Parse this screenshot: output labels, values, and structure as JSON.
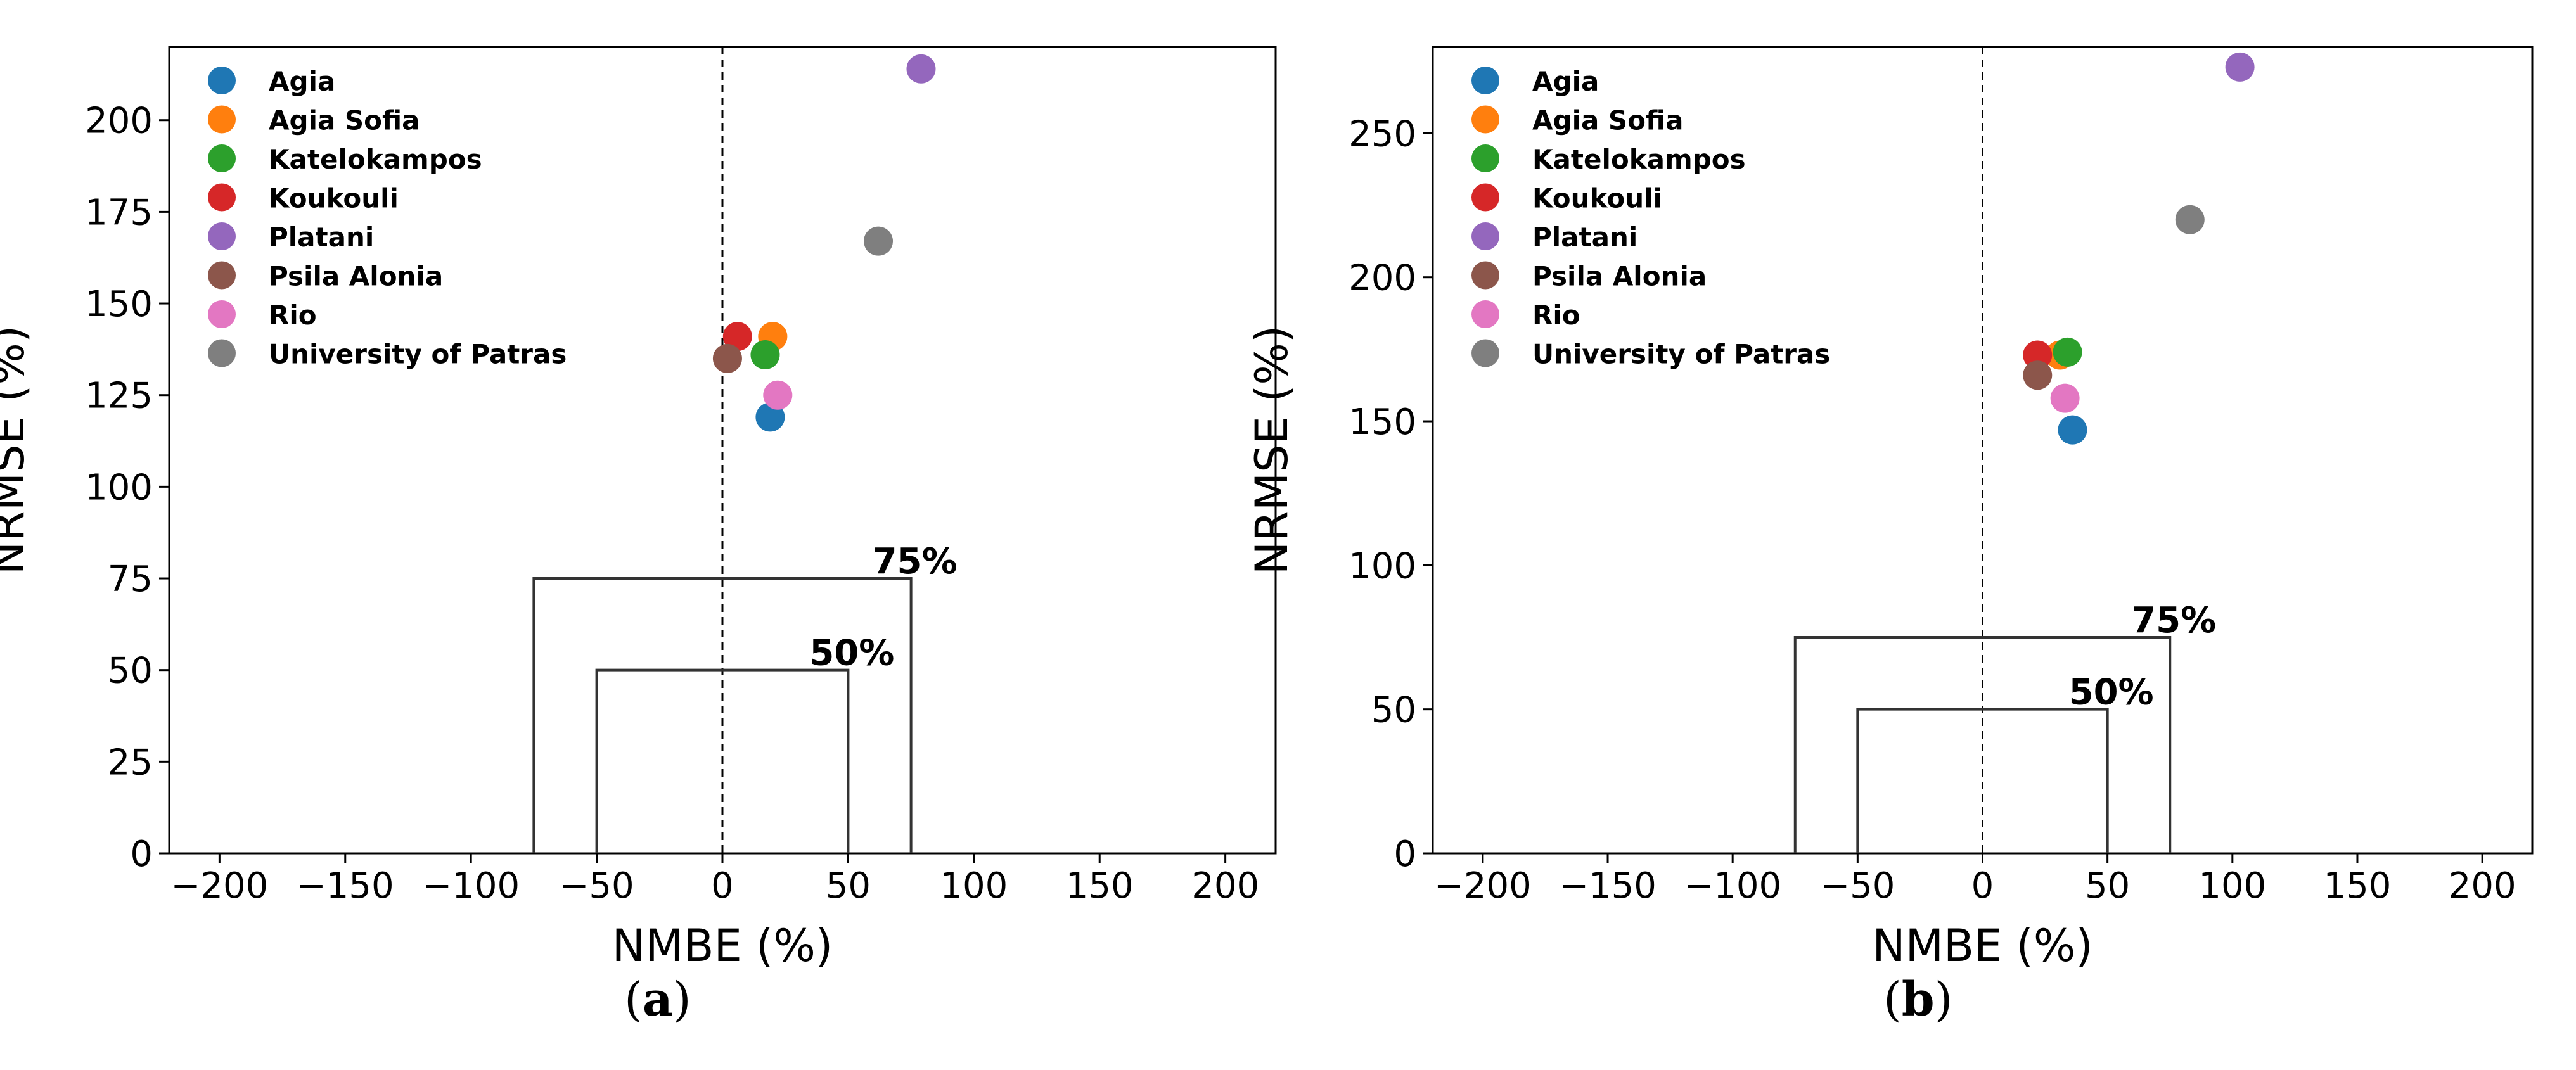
{
  "colors": {
    "Agia": "#1f77b4",
    "Agia Sofia": "#ff7f0e",
    "Katelokampos": "#2ca02c",
    "Koukouli": "#d62728",
    "Platani": "#9467bd",
    "Psila Alonia": "#8c564b",
    "Rio": "#e377c2",
    "University of Patras": "#7f7f7f",
    "frame": "#000000",
    "target": "#333333"
  },
  "chart_data": [
    {
      "type": "scatter",
      "panel_label": "a",
      "xlabel": "NMBE (%)",
      "ylabel": "NRMSE (%)",
      "xlim": [
        -220,
        220
      ],
      "ylim": [
        0,
        220
      ],
      "xticks": [
        -200,
        -150,
        -100,
        -50,
        0,
        50,
        100,
        150,
        200
      ],
      "xtick_labels": [
        "−200",
        "−150",
        "−100",
        "−50",
        "0",
        "50",
        "100",
        "150",
        "200"
      ],
      "yticks": [
        0,
        25,
        50,
        75,
        100,
        125,
        150,
        175,
        200
      ],
      "ytick_labels": [
        "0",
        "25",
        "50",
        "75",
        "100",
        "125",
        "150",
        "175",
        "200"
      ],
      "legend_position": "top-left",
      "target_regions": [
        {
          "label": "75%",
          "half_width": 75,
          "height": 75
        },
        {
          "label": "50%",
          "half_width": 50,
          "height": 50
        }
      ],
      "series": [
        {
          "name": "Agia",
          "x": 19,
          "y": 119
        },
        {
          "name": "Agia Sofia",
          "x": 20,
          "y": 141
        },
        {
          "name": "Katelokampos",
          "x": 17,
          "y": 136
        },
        {
          "name": "Koukouli",
          "x": 6,
          "y": 141
        },
        {
          "name": "Platani",
          "x": 79,
          "y": 214
        },
        {
          "name": "Psila Alonia",
          "x": 2,
          "y": 135
        },
        {
          "name": "Rio",
          "x": 22,
          "y": 125
        },
        {
          "name": "University of Patras",
          "x": 62,
          "y": 167
        }
      ]
    },
    {
      "type": "scatter",
      "panel_label": "b",
      "xlabel": "NMBE (%)",
      "ylabel": "NRMSE (%)",
      "xlim": [
        -220,
        220
      ],
      "ylim": [
        0,
        280
      ],
      "xticks": [
        -200,
        -150,
        -100,
        -50,
        0,
        50,
        100,
        150,
        200
      ],
      "xtick_labels": [
        "−200",
        "−150",
        "−100",
        "−50",
        "0",
        "50",
        "100",
        "150",
        "200"
      ],
      "yticks": [
        0,
        50,
        100,
        150,
        200,
        250
      ],
      "ytick_labels": [
        "0",
        "50",
        "100",
        "150",
        "200",
        "250"
      ],
      "legend_position": "top-left",
      "target_regions": [
        {
          "label": "75%",
          "half_width": 75,
          "height": 75
        },
        {
          "label": "50%",
          "half_width": 50,
          "height": 50
        }
      ],
      "series": [
        {
          "name": "Agia",
          "x": 36,
          "y": 147
        },
        {
          "name": "Agia Sofia",
          "x": 31,
          "y": 173
        },
        {
          "name": "Katelokampos",
          "x": 34,
          "y": 174
        },
        {
          "name": "Koukouli",
          "x": 22,
          "y": 173
        },
        {
          "name": "Platani",
          "x": 103,
          "y": 273
        },
        {
          "name": "Psila Alonia",
          "x": 22,
          "y": 166
        },
        {
          "name": "Rio",
          "x": 33,
          "y": 158
        },
        {
          "name": "University of Patras",
          "x": 83,
          "y": 220
        }
      ]
    }
  ]
}
